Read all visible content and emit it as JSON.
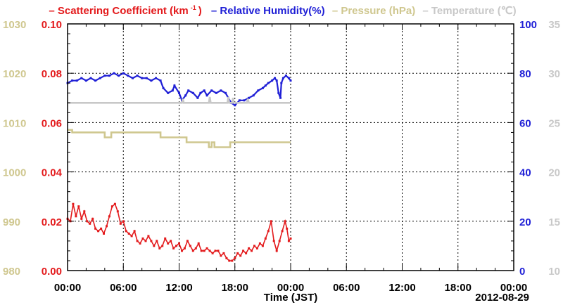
{
  "colors": {
    "scattering": "#e31a1c",
    "humidity": "#1f1fd6",
    "pressure": "#cfc78f",
    "temperature": "#c8c8c8",
    "axis": "#000000"
  },
  "legend": {
    "scattering_prefix": "– Scattering Coefficient (km",
    "scattering_sup": "-1",
    "scattering_suffix": ")",
    "humidity": "– Relative Humidity(%)",
    "pressure": "– Pressure (hPa)",
    "temperature": "– Temperature (℃)"
  },
  "chart_data": {
    "type": "line",
    "xlabel": "Time (JST)",
    "date_label": "2012-08-29",
    "x_ticks": [
      "00:00",
      "06:00",
      "12:00",
      "18:00",
      "00:00",
      "06:00",
      "12:00",
      "18:00",
      "00:00"
    ],
    "x_range_hours": [
      0,
      48
    ],
    "grid": true,
    "axes": {
      "pressure": {
        "ticks": [
          "1030",
          "1020",
          "1010",
          "1000",
          "990",
          "980"
        ],
        "range": [
          980,
          1030
        ]
      },
      "scattering": {
        "ticks": [
          "0.10",
          "0.08",
          "0.06",
          "0.04",
          "0.02",
          "0.00"
        ],
        "range": [
          0,
          0.1
        ]
      },
      "humidity": {
        "ticks": [
          "100",
          "80",
          "60",
          "40",
          "20",
          "0"
        ],
        "range": [
          0,
          100
        ]
      },
      "temperature": {
        "ticks": [
          "35",
          "30",
          "25",
          "20",
          "15",
          "10"
        ],
        "range": [
          10,
          35
        ]
      }
    },
    "series": [
      {
        "name": "Relative Humidity(%)",
        "axis": "humidity",
        "points": [
          [
            0,
            76
          ],
          [
            0.5,
            77
          ],
          [
            1,
            77
          ],
          [
            1.5,
            78
          ],
          [
            2,
            77
          ],
          [
            2.5,
            78
          ],
          [
            3,
            77
          ],
          [
            3.5,
            78
          ],
          [
            4,
            79
          ],
          [
            4.5,
            79
          ],
          [
            5,
            80
          ],
          [
            5.5,
            79
          ],
          [
            6,
            80
          ],
          [
            6.5,
            79
          ],
          [
            7,
            78
          ],
          [
            7.5,
            79
          ],
          [
            8,
            78
          ],
          [
            8.5,
            78
          ],
          [
            9,
            77
          ],
          [
            9.5,
            78
          ],
          [
            10,
            77
          ],
          [
            10.3,
            74
          ],
          [
            10.8,
            72
          ],
          [
            11.3,
            73
          ],
          [
            11.5,
            75
          ],
          [
            12,
            72
          ],
          [
            12.3,
            69
          ],
          [
            12.7,
            71
          ],
          [
            13,
            73
          ],
          [
            13.5,
            72
          ],
          [
            14,
            70
          ],
          [
            14.3,
            72
          ],
          [
            14.7,
            73
          ],
          [
            15,
            71
          ],
          [
            15.5,
            73
          ],
          [
            16,
            72
          ],
          [
            16.5,
            73
          ],
          [
            17,
            72
          ],
          [
            17.3,
            70
          ],
          [
            17.6,
            68
          ],
          [
            18,
            67
          ],
          [
            18.5,
            69
          ],
          [
            19,
            69
          ],
          [
            19.5,
            70
          ],
          [
            20,
            71
          ],
          [
            20.5,
            73
          ],
          [
            21,
            74
          ],
          [
            21.3,
            75
          ],
          [
            21.6,
            76
          ],
          [
            22,
            77
          ],
          [
            22.3,
            78
          ],
          [
            22.5,
            77
          ],
          [
            22.7,
            72
          ],
          [
            22.9,
            70
          ],
          [
            23,
            76
          ],
          [
            23.2,
            78
          ],
          [
            23.5,
            79
          ],
          [
            23.8,
            78
          ],
          [
            24,
            77
          ]
        ]
      },
      {
        "name": "Temperature (℃)",
        "axis": "temperature",
        "points": [
          [
            0,
            27
          ],
          [
            12.3,
            27
          ],
          [
            12.4,
            27.4
          ],
          [
            12.5,
            27
          ],
          [
            15.2,
            27
          ],
          [
            15.3,
            27.6
          ],
          [
            15.4,
            27
          ],
          [
            17.2,
            27
          ],
          [
            17.3,
            27.6
          ],
          [
            17.4,
            27
          ],
          [
            17.7,
            27
          ],
          [
            17.8,
            27.5
          ],
          [
            17.9,
            27
          ],
          [
            19.3,
            27
          ],
          [
            19.4,
            27.4
          ],
          [
            19.5,
            27
          ],
          [
            24,
            27
          ]
        ]
      },
      {
        "name": "Pressure (hPa)",
        "axis": "pressure",
        "points": [
          [
            0,
            1008.5
          ],
          [
            0.5,
            1008.5
          ],
          [
            0.5,
            1008
          ],
          [
            4,
            1008
          ],
          [
            4,
            1007
          ],
          [
            4.7,
            1007
          ],
          [
            4.7,
            1008
          ],
          [
            10,
            1008
          ],
          [
            10,
            1007
          ],
          [
            12.8,
            1007
          ],
          [
            12.8,
            1006
          ],
          [
            15.2,
            1006
          ],
          [
            15.2,
            1005
          ],
          [
            15.5,
            1005
          ],
          [
            15.5,
            1006
          ],
          [
            15.8,
            1006
          ],
          [
            15.8,
            1005
          ],
          [
            17.5,
            1005
          ],
          [
            17.5,
            1006
          ],
          [
            24,
            1006
          ]
        ]
      },
      {
        "name": "Scattering Coefficient (km-1)",
        "axis": "scattering",
        "points": [
          [
            0,
            0.021
          ],
          [
            0.3,
            0.02
          ],
          [
            0.6,
            0.027
          ],
          [
            0.9,
            0.022
          ],
          [
            1.2,
            0.026
          ],
          [
            1.5,
            0.021
          ],
          [
            1.8,
            0.024
          ],
          [
            2.1,
            0.02
          ],
          [
            2.4,
            0.019
          ],
          [
            2.7,
            0.021
          ],
          [
            3.0,
            0.017
          ],
          [
            3.3,
            0.016
          ],
          [
            3.6,
            0.017
          ],
          [
            3.9,
            0.015
          ],
          [
            4.2,
            0.018
          ],
          [
            4.5,
            0.022
          ],
          [
            4.8,
            0.026
          ],
          [
            5.1,
            0.027
          ],
          [
            5.4,
            0.024
          ],
          [
            5.7,
            0.019
          ],
          [
            6.0,
            0.02
          ],
          [
            6.3,
            0.016
          ],
          [
            6.6,
            0.015
          ],
          [
            6.9,
            0.014
          ],
          [
            7.2,
            0.016
          ],
          [
            7.5,
            0.012
          ],
          [
            7.8,
            0.011
          ],
          [
            8.1,
            0.013
          ],
          [
            8.4,
            0.012
          ],
          [
            8.7,
            0.014
          ],
          [
            9.0,
            0.012
          ],
          [
            9.3,
            0.01
          ],
          [
            9.6,
            0.012
          ],
          [
            9.9,
            0.009
          ],
          [
            10.2,
            0.01
          ],
          [
            10.5,
            0.013
          ],
          [
            10.8,
            0.011
          ],
          [
            11.1,
            0.012
          ],
          [
            11.4,
            0.009
          ],
          [
            11.7,
            0.01
          ],
          [
            12.0,
            0.011
          ],
          [
            12.3,
            0.008
          ],
          [
            12.6,
            0.009
          ],
          [
            12.9,
            0.012
          ],
          [
            13.2,
            0.01
          ],
          [
            13.5,
            0.008
          ],
          [
            13.8,
            0.009
          ],
          [
            14.1,
            0.011
          ],
          [
            14.4,
            0.008
          ],
          [
            14.7,
            0.008
          ],
          [
            15.0,
            0.009
          ],
          [
            15.3,
            0.008
          ],
          [
            15.6,
            0.007
          ],
          [
            15.9,
            0.008
          ],
          [
            16.2,
            0.008
          ],
          [
            16.5,
            0.006
          ],
          [
            16.8,
            0.007
          ],
          [
            17.1,
            0.005
          ],
          [
            17.4,
            0.004
          ],
          [
            17.7,
            0.004
          ],
          [
            18.0,
            0.005
          ],
          [
            18.3,
            0.007
          ],
          [
            18.6,
            0.006
          ],
          [
            18.9,
            0.008
          ],
          [
            19.2,
            0.007
          ],
          [
            19.5,
            0.009
          ],
          [
            19.8,
            0.008
          ],
          [
            20.1,
            0.01
          ],
          [
            20.4,
            0.009
          ],
          [
            20.7,
            0.011
          ],
          [
            21.0,
            0.01
          ],
          [
            21.3,
            0.013
          ],
          [
            21.6,
            0.016
          ],
          [
            21.9,
            0.02
          ],
          [
            22.2,
            0.012
          ],
          [
            22.5,
            0.008
          ],
          [
            22.8,
            0.012
          ],
          [
            23.1,
            0.016
          ],
          [
            23.4,
            0.02
          ],
          [
            23.6,
            0.017
          ],
          [
            23.8,
            0.012
          ],
          [
            24.0,
            0.013
          ]
        ]
      }
    ]
  }
}
